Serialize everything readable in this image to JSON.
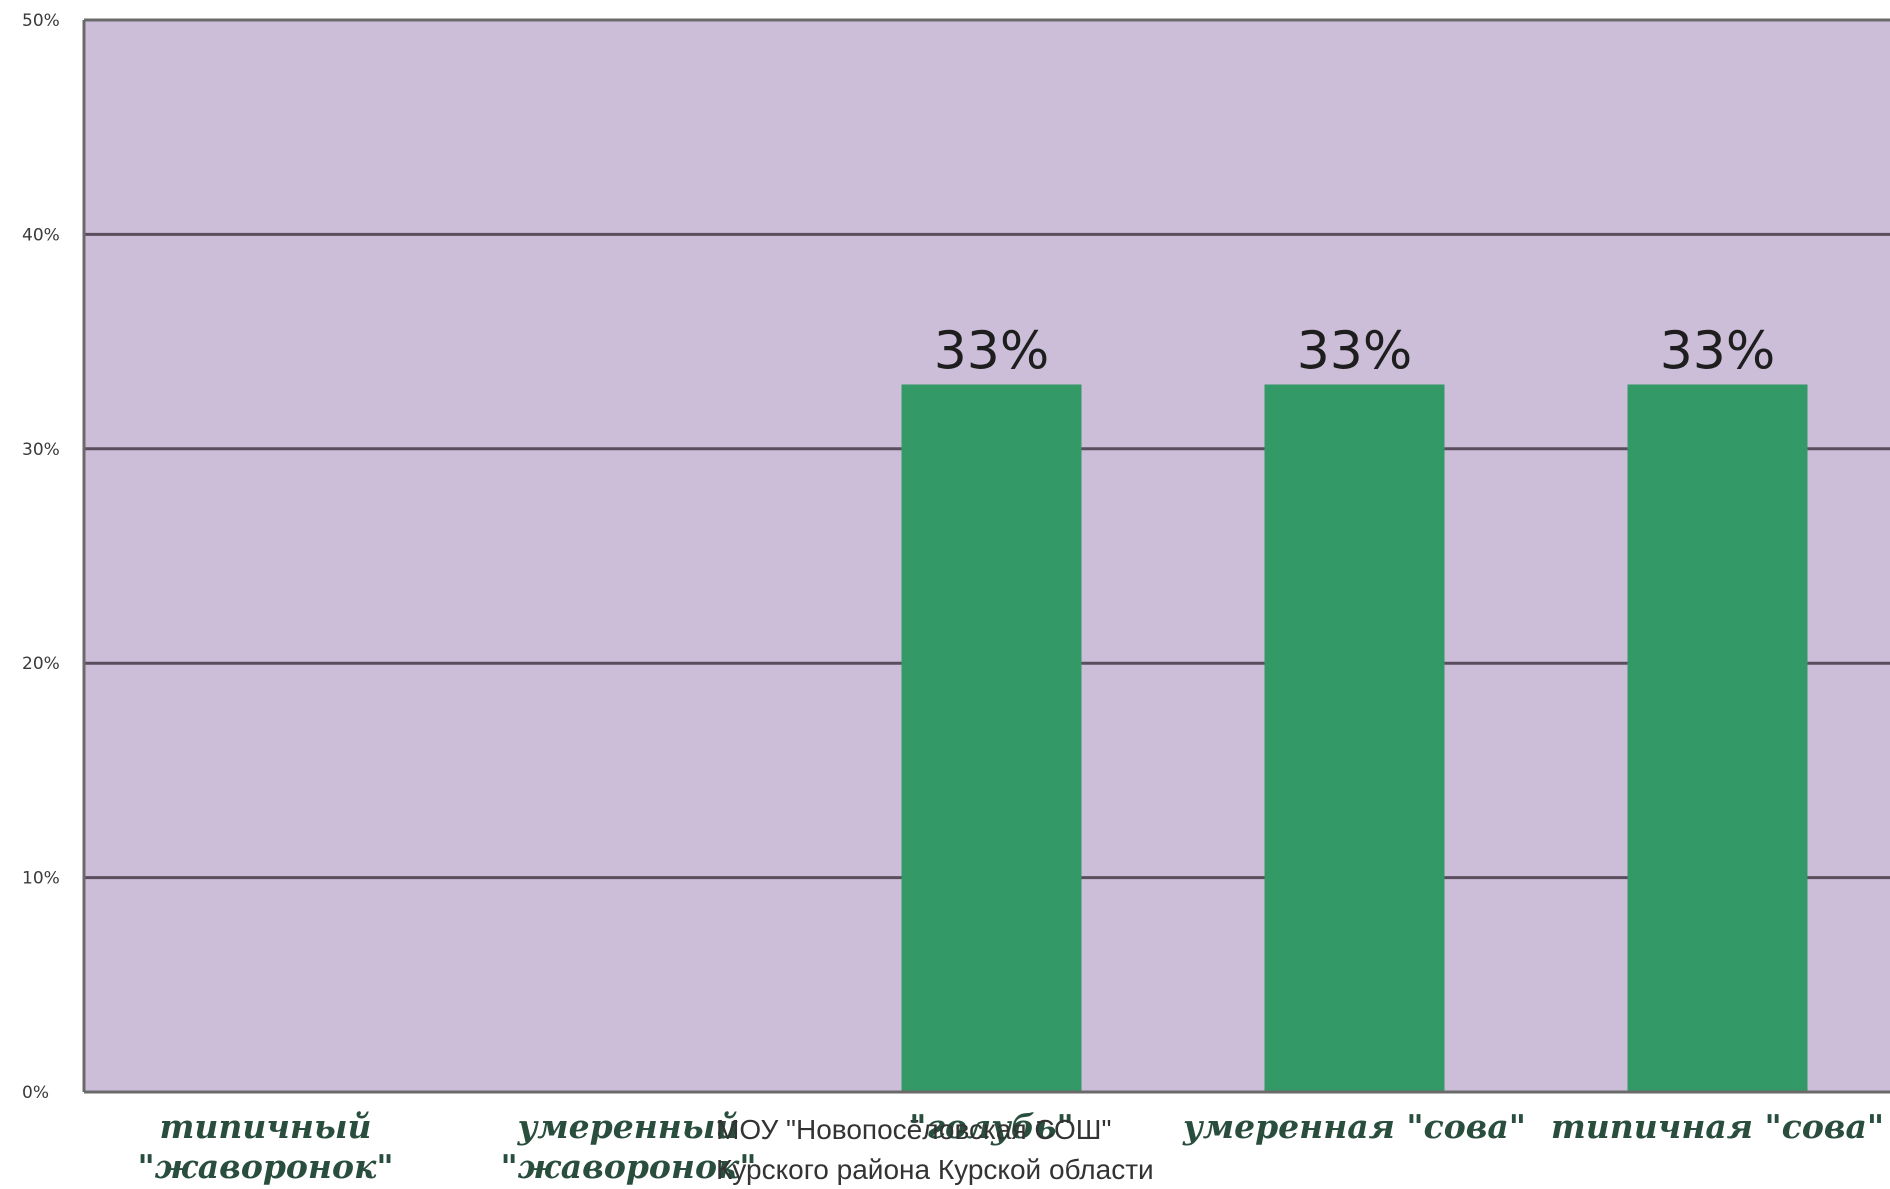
{
  "chart_data": {
    "type": "bar",
    "categories": [
      [
        "типичный",
        "\"жаворонок\""
      ],
      [
        "умеренный",
        "\"жаворонок\""
      ],
      [
        "\"голубь\""
      ],
      [
        "умеренная \"сова\""
      ],
      [
        "типичная \"сова\""
      ]
    ],
    "values": [
      0,
      0,
      33,
      33,
      33
    ],
    "data_labels": [
      "",
      "",
      "33%",
      "33%",
      "33%"
    ],
    "ylim": [
      0,
      50
    ],
    "y_ticks": [
      0,
      10,
      20,
      30,
      40,
      50
    ],
    "y_tick_labels": [
      "0%",
      "10%",
      "20%",
      "30%",
      "40%",
      "50%"
    ],
    "title": "",
    "xlabel": "",
    "ylabel": "",
    "grid": true,
    "legend": "none",
    "colors": {
      "plot_background": "#ccbed8",
      "bar": "#339966",
      "gridline": "#5a4e5e",
      "category_text": "#2a4e3e"
    }
  },
  "footer": {
    "line1": "МОУ \"Новопосёловская СОШ\"",
    "line2": "Курского района Курской области"
  }
}
